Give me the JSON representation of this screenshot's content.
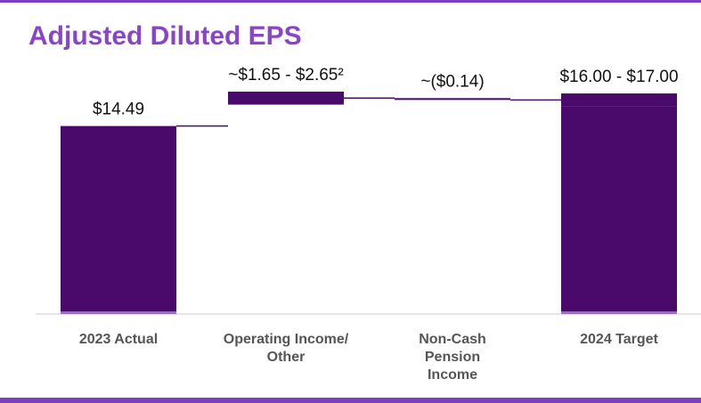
{
  "chart_data": {
    "type": "waterfall",
    "title": "Adjusted Diluted EPS",
    "color": "#4a0a6b",
    "items": [
      {
        "category": "2023 Actual",
        "kind": "total",
        "value": 14.49,
        "label": "$14.49"
      },
      {
        "category": "Operating Income/ Other",
        "kind": "delta",
        "low": 1.65,
        "high": 2.65,
        "label": "~$1.65 - $2.65²"
      },
      {
        "category": "Non-Cash Pension Income",
        "kind": "delta",
        "value": -0.14,
        "label": "~($0.14)"
      },
      {
        "category": "2024 Target",
        "kind": "total",
        "low": 16.0,
        "high": 17.0,
        "label": "$16.00 - $17.00"
      }
    ]
  }
}
